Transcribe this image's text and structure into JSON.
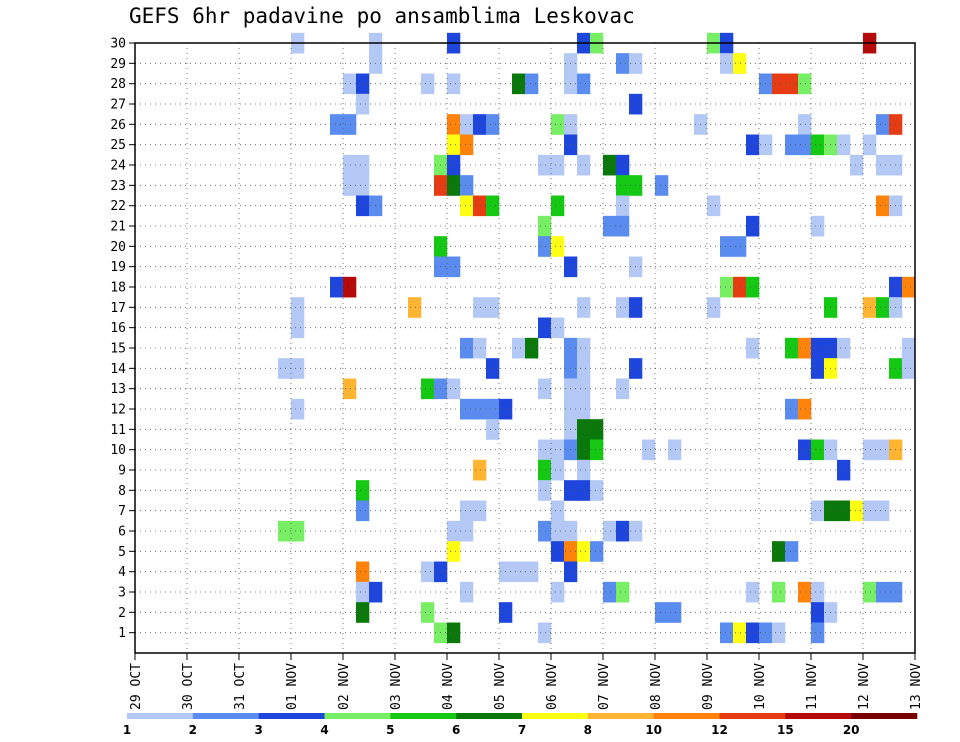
{
  "chart_data": {
    "type": "heatmap",
    "title": "GEFS 6hr padavine po ansamblima Leskovac",
    "xlabel": "",
    "ylabel": "",
    "x_tick_labels": [
      "29 OCT",
      "30 OCT",
      "31 OCT",
      "01 NOV",
      "02 NOV",
      "03 NOV",
      "04 NOV",
      "05 NOV",
      "06 NOV",
      "07 NOV",
      "08 NOV",
      "09 NOV",
      "10 NOV",
      "11 NOV",
      "12 NOV",
      "13 NOV"
    ],
    "y_tick_labels": [
      "1",
      "2",
      "3",
      "4",
      "5",
      "6",
      "7",
      "8",
      "9",
      "10",
      "11",
      "12",
      "13",
      "14",
      "15",
      "16",
      "17",
      "18",
      "19",
      "20",
      "21",
      "22",
      "23",
      "24",
      "25",
      "26",
      "27",
      "28",
      "29",
      "30"
    ],
    "x_range": [
      "29 OCT 00Z",
      "13 NOV 00Z"
    ],
    "time_step_hours": 6,
    "y_range": [
      0,
      30
    ],
    "grid": true,
    "legend_position": "bottom",
    "colorbar": {
      "labels": [
        "1",
        "2",
        "3",
        "4",
        "5",
        "6",
        "7",
        "8",
        "10",
        "12",
        "15",
        "20"
      ],
      "colors": [
        "#b4c8f5",
        "#5a8cf0",
        "#1e46dc",
        "#78ee64",
        "#14c814",
        "#0a780a",
        "#ffff14",
        "#ffb432",
        "#ff820a",
        "#e63c14",
        "#b40a0a",
        "#780000"
      ]
    },
    "cells_description": "each cell: [x step index (6h steps from 29 OCT 00Z), ensemble member row, color class index]",
    "cells": [
      [
        12,
        30,
        0
      ],
      [
        18,
        30,
        0
      ],
      [
        24,
        30,
        2
      ],
      [
        34,
        30,
        2
      ],
      [
        35,
        30,
        3
      ],
      [
        44,
        30,
        3
      ],
      [
        45,
        30,
        2
      ],
      [
        56,
        30,
        10
      ],
      [
        18,
        29,
        0
      ],
      [
        33,
        29,
        0
      ],
      [
        37,
        29,
        1
      ],
      [
        38,
        29,
        0
      ],
      [
        45,
        29,
        0
      ],
      [
        46,
        29,
        6
      ],
      [
        16,
        28,
        0
      ],
      [
        17,
        28,
        2
      ],
      [
        22,
        28,
        0
      ],
      [
        24,
        28,
        0
      ],
      [
        29,
        28,
        5
      ],
      [
        30,
        28,
        1
      ],
      [
        33,
        28,
        0
      ],
      [
        34,
        28,
        1
      ],
      [
        48,
        28,
        1
      ],
      [
        49,
        28,
        9
      ],
      [
        50,
        28,
        9
      ],
      [
        51,
        28,
        3
      ],
      [
        17,
        27,
        0
      ],
      [
        38,
        27,
        2
      ],
      [
        15,
        26,
        1
      ],
      [
        16,
        26,
        1
      ],
      [
        24,
        26,
        8
      ],
      [
        25,
        26,
        0
      ],
      [
        26,
        26,
        2
      ],
      [
        27,
        26,
        1
      ],
      [
        32,
        26,
        3
      ],
      [
        33,
        26,
        0
      ],
      [
        43,
        26,
        0
      ],
      [
        51,
        26,
        0
      ],
      [
        57,
        26,
        1
      ],
      [
        58,
        26,
        9
      ],
      [
        24,
        25,
        6
      ],
      [
        25,
        25,
        8
      ],
      [
        33,
        25,
        2
      ],
      [
        47,
        25,
        2
      ],
      [
        48,
        25,
        0
      ],
      [
        50,
        25,
        1
      ],
      [
        51,
        25,
        1
      ],
      [
        52,
        25,
        4
      ],
      [
        53,
        25,
        3
      ],
      [
        54,
        25,
        0
      ],
      [
        56,
        25,
        0
      ],
      [
        16,
        24,
        0
      ],
      [
        17,
        24,
        0
      ],
      [
        23,
        24,
        3
      ],
      [
        24,
        24,
        2
      ],
      [
        31,
        24,
        0
      ],
      [
        32,
        24,
        0
      ],
      [
        34,
        24,
        0
      ],
      [
        36,
        24,
        5
      ],
      [
        37,
        24,
        2
      ],
      [
        55,
        24,
        0
      ],
      [
        57,
        24,
        0
      ],
      [
        58,
        24,
        0
      ],
      [
        16,
        23,
        0
      ],
      [
        17,
        23,
        0
      ],
      [
        23,
        23,
        9
      ],
      [
        24,
        23,
        5
      ],
      [
        25,
        23,
        1
      ],
      [
        37,
        23,
        4
      ],
      [
        38,
        23,
        4
      ],
      [
        40,
        23,
        1
      ],
      [
        17,
        22,
        2
      ],
      [
        18,
        22,
        1
      ],
      [
        25,
        22,
        6
      ],
      [
        26,
        22,
        9
      ],
      [
        27,
        22,
        4
      ],
      [
        32,
        22,
        4
      ],
      [
        37,
        22,
        0
      ],
      [
        44,
        22,
        0
      ],
      [
        57,
        22,
        8
      ],
      [
        58,
        22,
        0
      ],
      [
        31,
        21,
        3
      ],
      [
        36,
        21,
        1
      ],
      [
        37,
        21,
        1
      ],
      [
        47,
        21,
        2
      ],
      [
        52,
        21,
        0
      ],
      [
        23,
        20,
        4
      ],
      [
        31,
        20,
        1
      ],
      [
        32,
        20,
        6
      ],
      [
        45,
        20,
        1
      ],
      [
        46,
        20,
        1
      ],
      [
        23,
        19,
        1
      ],
      [
        24,
        19,
        1
      ],
      [
        33,
        19,
        2
      ],
      [
        38,
        19,
        0
      ],
      [
        15,
        18,
        2
      ],
      [
        16,
        18,
        10
      ],
      [
        45,
        18,
        3
      ],
      [
        46,
        18,
        9
      ],
      [
        47,
        18,
        4
      ],
      [
        58,
        18,
        2
      ],
      [
        59,
        18,
        8
      ],
      [
        12,
        17,
        0
      ],
      [
        21,
        17,
        7
      ],
      [
        26,
        17,
        0
      ],
      [
        27,
        17,
        0
      ],
      [
        34,
        17,
        0
      ],
      [
        37,
        17,
        0
      ],
      [
        38,
        17,
        2
      ],
      [
        44,
        17,
        0
      ],
      [
        53,
        17,
        4
      ],
      [
        56,
        17,
        7
      ],
      [
        57,
        17,
        4
      ],
      [
        58,
        17,
        0
      ],
      [
        12,
        16,
        0
      ],
      [
        31,
        16,
        2
      ],
      [
        32,
        16,
        0
      ],
      [
        25,
        15,
        1
      ],
      [
        26,
        15,
        0
      ],
      [
        29,
        15,
        0
      ],
      [
        30,
        15,
        5
      ],
      [
        33,
        15,
        1
      ],
      [
        34,
        15,
        0
      ],
      [
        47,
        15,
        0
      ],
      [
        50,
        15,
        4
      ],
      [
        51,
        15,
        8
      ],
      [
        52,
        15,
        2
      ],
      [
        53,
        15,
        2
      ],
      [
        54,
        15,
        0
      ],
      [
        59,
        15,
        0
      ],
      [
        11,
        14,
        0
      ],
      [
        12,
        14,
        0
      ],
      [
        27,
        14,
        2
      ],
      [
        33,
        14,
        1
      ],
      [
        34,
        14,
        0
      ],
      [
        38,
        14,
        2
      ],
      [
        52,
        14,
        2
      ],
      [
        53,
        14,
        6
      ],
      [
        58,
        14,
        4
      ],
      [
        59,
        14,
        0
      ],
      [
        16,
        13,
        7
      ],
      [
        22,
        13,
        4
      ],
      [
        23,
        13,
        1
      ],
      [
        24,
        13,
        0
      ],
      [
        31,
        13,
        0
      ],
      [
        33,
        13,
        0
      ],
      [
        34,
        13,
        0
      ],
      [
        37,
        13,
        0
      ],
      [
        12,
        12,
        0
      ],
      [
        25,
        12,
        1
      ],
      [
        26,
        12,
        1
      ],
      [
        27,
        12,
        1
      ],
      [
        28,
        12,
        2
      ],
      [
        33,
        12,
        0
      ],
      [
        34,
        12,
        0
      ],
      [
        50,
        12,
        1
      ],
      [
        51,
        12,
        8
      ],
      [
        27,
        11,
        0
      ],
      [
        33,
        11,
        0
      ],
      [
        34,
        11,
        5
      ],
      [
        35,
        11,
        5
      ],
      [
        31,
        10,
        0
      ],
      [
        32,
        10,
        0
      ],
      [
        33,
        10,
        1
      ],
      [
        34,
        10,
        5
      ],
      [
        35,
        10,
        4
      ],
      [
        39,
        10,
        0
      ],
      [
        41,
        10,
        0
      ],
      [
        51,
        10,
        2
      ],
      [
        52,
        10,
        4
      ],
      [
        53,
        10,
        0
      ],
      [
        56,
        10,
        0
      ],
      [
        57,
        10,
        0
      ],
      [
        58,
        10,
        7
      ],
      [
        26,
        9,
        7
      ],
      [
        31,
        9,
        4
      ],
      [
        32,
        9,
        0
      ],
      [
        34,
        9,
        0
      ],
      [
        54,
        9,
        2
      ],
      [
        17,
        8,
        4
      ],
      [
        31,
        8,
        0
      ],
      [
        33,
        8,
        2
      ],
      [
        34,
        8,
        2
      ],
      [
        35,
        8,
        0
      ],
      [
        17,
        7,
        1
      ],
      [
        25,
        7,
        0
      ],
      [
        26,
        7,
        0
      ],
      [
        32,
        7,
        0
      ],
      [
        52,
        7,
        0
      ],
      [
        53,
        7,
        5
      ],
      [
        54,
        7,
        5
      ],
      [
        55,
        7,
        6
      ],
      [
        56,
        7,
        0
      ],
      [
        57,
        7,
        0
      ],
      [
        11,
        6,
        3
      ],
      [
        12,
        6,
        3
      ],
      [
        24,
        6,
        0
      ],
      [
        25,
        6,
        0
      ],
      [
        31,
        6,
        1
      ],
      [
        32,
        6,
        0
      ],
      [
        33,
        6,
        0
      ],
      [
        36,
        6,
        0
      ],
      [
        37,
        6,
        2
      ],
      [
        38,
        6,
        0
      ],
      [
        24,
        5,
        6
      ],
      [
        32,
        5,
        2
      ],
      [
        33,
        5,
        8
      ],
      [
        34,
        5,
        6
      ],
      [
        35,
        5,
        1
      ],
      [
        49,
        5,
        5
      ],
      [
        50,
        5,
        1
      ],
      [
        17,
        4,
        8
      ],
      [
        22,
        4,
        0
      ],
      [
        23,
        4,
        2
      ],
      [
        28,
        4,
        0
      ],
      [
        29,
        4,
        0
      ],
      [
        30,
        4,
        0
      ],
      [
        33,
        4,
        2
      ],
      [
        17,
        3,
        0
      ],
      [
        18,
        3,
        2
      ],
      [
        25,
        3,
        0
      ],
      [
        32,
        3,
        0
      ],
      [
        36,
        3,
        1
      ],
      [
        37,
        3,
        3
      ],
      [
        47,
        3,
        0
      ],
      [
        49,
        3,
        3
      ],
      [
        51,
        3,
        8
      ],
      [
        52,
        3,
        0
      ],
      [
        56,
        3,
        3
      ],
      [
        57,
        3,
        1
      ],
      [
        58,
        3,
        1
      ],
      [
        17,
        2,
        5
      ],
      [
        22,
        2,
        3
      ],
      [
        28,
        2,
        2
      ],
      [
        40,
        2,
        1
      ],
      [
        41,
        2,
        1
      ],
      [
        52,
        2,
        2
      ],
      [
        53,
        2,
        0
      ],
      [
        23,
        1,
        3
      ],
      [
        24,
        1,
        5
      ],
      [
        31,
        1,
        0
      ],
      [
        45,
        1,
        1
      ],
      [
        46,
        1,
        6
      ],
      [
        47,
        1,
        2
      ],
      [
        48,
        1,
        1
      ],
      [
        49,
        1,
        0
      ],
      [
        52,
        1,
        1
      ]
    ]
  }
}
